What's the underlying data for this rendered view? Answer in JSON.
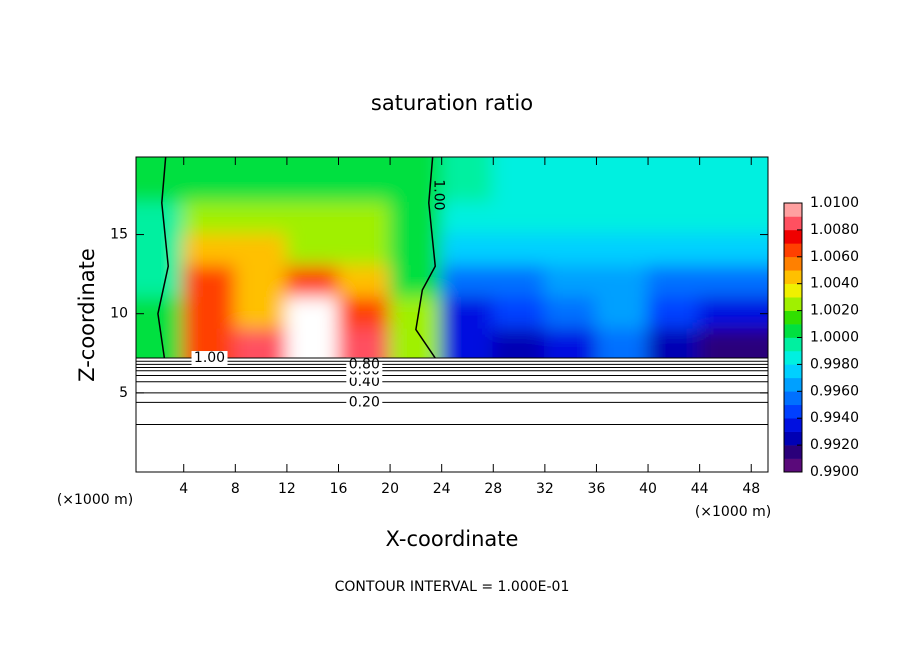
{
  "chart_data": {
    "type": "contour",
    "title": "saturation ratio",
    "x_label": "X-coordinate",
    "y_label": "Z-coordinate",
    "x_unit_left": "(×1000 m)",
    "x_unit_right": "(×1000 m)",
    "footer": "CONTOUR INTERVAL = 1.000E-01",
    "xlim": [
      0.3,
      49.3
    ],
    "ylim": [
      0,
      19.9
    ],
    "xticks": [
      4,
      8,
      12,
      16,
      20,
      24,
      28,
      32,
      36,
      40,
      44,
      48
    ],
    "yticks": [
      5,
      10,
      15
    ],
    "field": {
      "x": [
        2,
        6,
        10,
        14,
        18,
        22,
        26,
        30,
        34,
        38,
        42,
        46
      ],
      "z": [
        18,
        16,
        14,
        12,
        10,
        8
      ],
      "values": [
        [
          1.0,
          1.001,
          1.001,
          1.001,
          1.001,
          1.0,
          0.999,
          0.998,
          0.998,
          0.998,
          0.998,
          0.998
        ],
        [
          0.999,
          1.002,
          1.003,
          1.002,
          1.002,
          1.0,
          0.998,
          0.998,
          0.998,
          0.998,
          0.998,
          0.998
        ],
        [
          0.999,
          1.004,
          1.004,
          1.003,
          1.002,
          1.001,
          0.997,
          0.997,
          0.997,
          0.997,
          0.997,
          0.997
        ],
        [
          0.999,
          1.007,
          1.005,
          1.006,
          1.004,
          1.001,
          0.995,
          0.995,
          0.996,
          0.996,
          0.995,
          0.995
        ],
        [
          1.0,
          1.006,
          1.005,
          1.011,
          1.007,
          1.002,
          0.993,
          0.994,
          0.995,
          0.996,
          0.994,
          0.993
        ],
        [
          1.001,
          1.007,
          1.008,
          1.011,
          1.009,
          1.003,
          0.993,
          0.992,
          0.993,
          0.995,
          0.992,
          0.991
        ]
      ]
    },
    "contours": [
      {
        "level": 0.1,
        "z": 3.0
      },
      {
        "level": 0.2,
        "z": 4.4,
        "label": "0.20"
      },
      {
        "level": 0.3,
        "z": 5.0
      },
      {
        "level": 0.4,
        "z": 5.7,
        "label": "0.40"
      },
      {
        "level": 0.5,
        "z": 6.1
      },
      {
        "level": 0.6,
        "z": 6.4,
        "label": "0.60"
      },
      {
        "level": 0.7,
        "z": 6.6
      },
      {
        "level": 0.8,
        "z": 6.8,
        "label": "0.80"
      },
      {
        "level": 0.9,
        "z": 7.0
      },
      {
        "level": 1.0,
        "z": 7.2,
        "label": "1.00"
      }
    ],
    "contour_lines": [
      {
        "level": 1.0,
        "x": [
          2.5,
          2.0,
          2.8,
          2.3,
          2.6
        ],
        "z": [
          7.2,
          10,
          13,
          17,
          19.9
        ]
      },
      {
        "level": 1.0,
        "label": "1.00",
        "x": [
          23.5,
          22.0,
          22.5,
          23.5,
          23.0,
          23.3
        ],
        "z": [
          7.2,
          9,
          11.5,
          13,
          17,
          19.9
        ]
      }
    ],
    "colorbar": {
      "lim": [
        0.99,
        1.01
      ],
      "colors": [
        "#5a0a7a",
        "#2a007a",
        "#0000b4",
        "#0010e0",
        "#0040ff",
        "#0070ff",
        "#00a0ff",
        "#00d0ff",
        "#00f0e0",
        "#00f0a0",
        "#00e040",
        "#30e000",
        "#a0f000",
        "#f0f000",
        "#ffc000",
        "#ff8000",
        "#ff4000",
        "#f00000",
        "#ff5060",
        "#ffa0a0"
      ],
      "ticks": [
        {
          "value": 0.99,
          "label": "0.9900"
        },
        {
          "value": 0.992,
          "label": "0.9920"
        },
        {
          "value": 0.994,
          "label": "0.9940"
        },
        {
          "value": 0.996,
          "label": "0.9960"
        },
        {
          "value": 0.998,
          "label": "0.9980"
        },
        {
          "value": 1.0,
          "label": "1.0000"
        },
        {
          "value": 1.002,
          "label": "1.0020"
        },
        {
          "value": 1.004,
          "label": "1.0040"
        },
        {
          "value": 1.006,
          "label": "1.0060"
        },
        {
          "value": 1.008,
          "label": "1.0080"
        },
        {
          "value": 1.01,
          "label": "1.0100"
        }
      ]
    }
  }
}
